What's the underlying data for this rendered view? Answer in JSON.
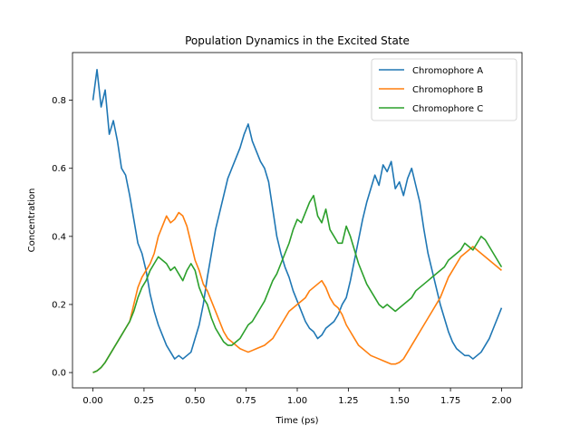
{
  "chart_data": {
    "type": "line",
    "title": "Population Dynamics in the Excited State",
    "xlabel": "Time (ps)",
    "ylabel": "Concentration",
    "xlim": [
      -0.1,
      2.1
    ],
    "ylim": [
      -0.045,
      0.94
    ],
    "xticks": [
      0.0,
      0.25,
      0.5,
      0.75,
      1.0,
      1.25,
      1.5,
      1.75,
      2.0
    ],
    "xtick_labels": [
      "0.00",
      "0.25",
      "0.50",
      "0.75",
      "1.00",
      "1.25",
      "1.50",
      "1.75",
      "2.00"
    ],
    "yticks": [
      0.0,
      0.2,
      0.4,
      0.6,
      0.8
    ],
    "ytick_labels": [
      "0.0",
      "0.2",
      "0.4",
      "0.6",
      "0.8"
    ],
    "grid": false,
    "legend_position": "top-right",
    "x": [
      0.0,
      0.02,
      0.04,
      0.06,
      0.08,
      0.1,
      0.12,
      0.14,
      0.16,
      0.18,
      0.2,
      0.22,
      0.24,
      0.26,
      0.28,
      0.3,
      0.32,
      0.34,
      0.36,
      0.38,
      0.4,
      0.42,
      0.44,
      0.46,
      0.48,
      0.5,
      0.52,
      0.54,
      0.56,
      0.58,
      0.6,
      0.62,
      0.64,
      0.66,
      0.68,
      0.7,
      0.72,
      0.74,
      0.76,
      0.78,
      0.8,
      0.82,
      0.84,
      0.86,
      0.88,
      0.9,
      0.92,
      0.94,
      0.96,
      0.98,
      1.0,
      1.02,
      1.04,
      1.06,
      1.08,
      1.1,
      1.12,
      1.14,
      1.16,
      1.18,
      1.2,
      1.22,
      1.24,
      1.26,
      1.28,
      1.3,
      1.32,
      1.34,
      1.36,
      1.38,
      1.4,
      1.42,
      1.44,
      1.46,
      1.48,
      1.5,
      1.52,
      1.54,
      1.56,
      1.58,
      1.6,
      1.62,
      1.64,
      1.66,
      1.68,
      1.7,
      1.72,
      1.74,
      1.76,
      1.78,
      1.8,
      1.82,
      1.84,
      1.86,
      1.88,
      1.9,
      1.92,
      1.94,
      1.96,
      1.98,
      2.0
    ],
    "series": [
      {
        "name": "Chromophore A",
        "color": "#1f77b4",
        "values": [
          0.8,
          0.89,
          0.78,
          0.83,
          0.7,
          0.74,
          0.68,
          0.6,
          0.58,
          0.52,
          0.45,
          0.38,
          0.35,
          0.3,
          0.23,
          0.18,
          0.14,
          0.11,
          0.08,
          0.06,
          0.04,
          0.05,
          0.04,
          0.05,
          0.06,
          0.1,
          0.14,
          0.2,
          0.28,
          0.35,
          0.42,
          0.47,
          0.52,
          0.57,
          0.6,
          0.63,
          0.66,
          0.7,
          0.73,
          0.68,
          0.65,
          0.62,
          0.6,
          0.56,
          0.48,
          0.4,
          0.35,
          0.31,
          0.28,
          0.24,
          0.21,
          0.18,
          0.15,
          0.13,
          0.12,
          0.1,
          0.11,
          0.13,
          0.14,
          0.15,
          0.17,
          0.2,
          0.22,
          0.27,
          0.33,
          0.39,
          0.45,
          0.5,
          0.54,
          0.58,
          0.55,
          0.61,
          0.59,
          0.62,
          0.54,
          0.56,
          0.52,
          0.57,
          0.6,
          0.55,
          0.5,
          0.42,
          0.35,
          0.3,
          0.25,
          0.2,
          0.16,
          0.12,
          0.09,
          0.07,
          0.06,
          0.05,
          0.05,
          0.04,
          0.05,
          0.06,
          0.08,
          0.1,
          0.13,
          0.16,
          0.19
        ]
      },
      {
        "name": "Chromophore B",
        "color": "#ff7f0e",
        "values": [
          0.0,
          0.005,
          0.015,
          0.03,
          0.05,
          0.07,
          0.09,
          0.11,
          0.13,
          0.15,
          0.2,
          0.25,
          0.28,
          0.3,
          0.32,
          0.35,
          0.4,
          0.43,
          0.46,
          0.44,
          0.45,
          0.47,
          0.46,
          0.43,
          0.38,
          0.33,
          0.3,
          0.26,
          0.24,
          0.21,
          0.18,
          0.15,
          0.12,
          0.1,
          0.09,
          0.08,
          0.07,
          0.065,
          0.06,
          0.065,
          0.07,
          0.075,
          0.08,
          0.09,
          0.1,
          0.12,
          0.14,
          0.16,
          0.18,
          0.19,
          0.2,
          0.21,
          0.22,
          0.24,
          0.25,
          0.26,
          0.27,
          0.25,
          0.22,
          0.2,
          0.19,
          0.17,
          0.14,
          0.12,
          0.1,
          0.08,
          0.07,
          0.06,
          0.05,
          0.045,
          0.04,
          0.035,
          0.03,
          0.025,
          0.025,
          0.03,
          0.04,
          0.06,
          0.08,
          0.1,
          0.12,
          0.14,
          0.16,
          0.18,
          0.2,
          0.22,
          0.25,
          0.28,
          0.3,
          0.32,
          0.34,
          0.35,
          0.36,
          0.37,
          0.36,
          0.35,
          0.34,
          0.33,
          0.32,
          0.31,
          0.3
        ]
      },
      {
        "name": "Chromophore C",
        "color": "#2ca02c",
        "values": [
          0.0,
          0.005,
          0.015,
          0.03,
          0.05,
          0.07,
          0.09,
          0.11,
          0.13,
          0.15,
          0.18,
          0.22,
          0.25,
          0.27,
          0.3,
          0.32,
          0.34,
          0.33,
          0.32,
          0.3,
          0.31,
          0.29,
          0.27,
          0.3,
          0.32,
          0.3,
          0.25,
          0.22,
          0.2,
          0.16,
          0.13,
          0.11,
          0.09,
          0.08,
          0.08,
          0.09,
          0.1,
          0.12,
          0.14,
          0.15,
          0.17,
          0.19,
          0.21,
          0.24,
          0.27,
          0.29,
          0.32,
          0.35,
          0.38,
          0.42,
          0.45,
          0.44,
          0.47,
          0.5,
          0.52,
          0.46,
          0.44,
          0.48,
          0.42,
          0.4,
          0.38,
          0.38,
          0.43,
          0.4,
          0.36,
          0.32,
          0.29,
          0.26,
          0.24,
          0.22,
          0.2,
          0.19,
          0.2,
          0.19,
          0.18,
          0.19,
          0.2,
          0.21,
          0.22,
          0.24,
          0.25,
          0.26,
          0.27,
          0.28,
          0.29,
          0.3,
          0.31,
          0.33,
          0.34,
          0.35,
          0.36,
          0.38,
          0.37,
          0.36,
          0.38,
          0.4,
          0.39,
          0.37,
          0.35,
          0.33,
          0.31
        ]
      }
    ]
  }
}
